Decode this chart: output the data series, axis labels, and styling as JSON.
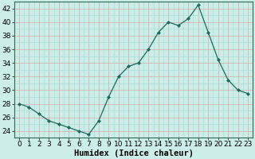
{
  "x": [
    0,
    1,
    2,
    3,
    4,
    5,
    6,
    7,
    8,
    9,
    10,
    11,
    12,
    13,
    14,
    15,
    16,
    17,
    18,
    19,
    20,
    21,
    22,
    23
  ],
  "y": [
    28,
    27.5,
    26.5,
    25.5,
    25,
    24.5,
    24,
    23.5,
    25.5,
    29,
    32,
    33.5,
    34,
    36,
    38.5,
    40,
    39.5,
    40.5,
    42.5,
    38.5,
    34.5,
    31.5,
    30,
    29.5
  ],
  "line_color": "#1a6b5a",
  "marker": "D",
  "marker_size": 2.2,
  "bg_color": "#cceee8",
  "grid_minor_color": "#aaddda",
  "grid_major_color": "#d4a8a8",
  "xlabel": "Humidex (Indice chaleur)",
  "yticks": [
    24,
    26,
    28,
    30,
    32,
    34,
    36,
    38,
    40,
    42
  ],
  "xlim": [
    -0.5,
    23.5
  ],
  "ylim": [
    23.0,
    43.0
  ],
  "xlabel_fontsize": 7.5,
  "tick_fontsize": 6.5
}
